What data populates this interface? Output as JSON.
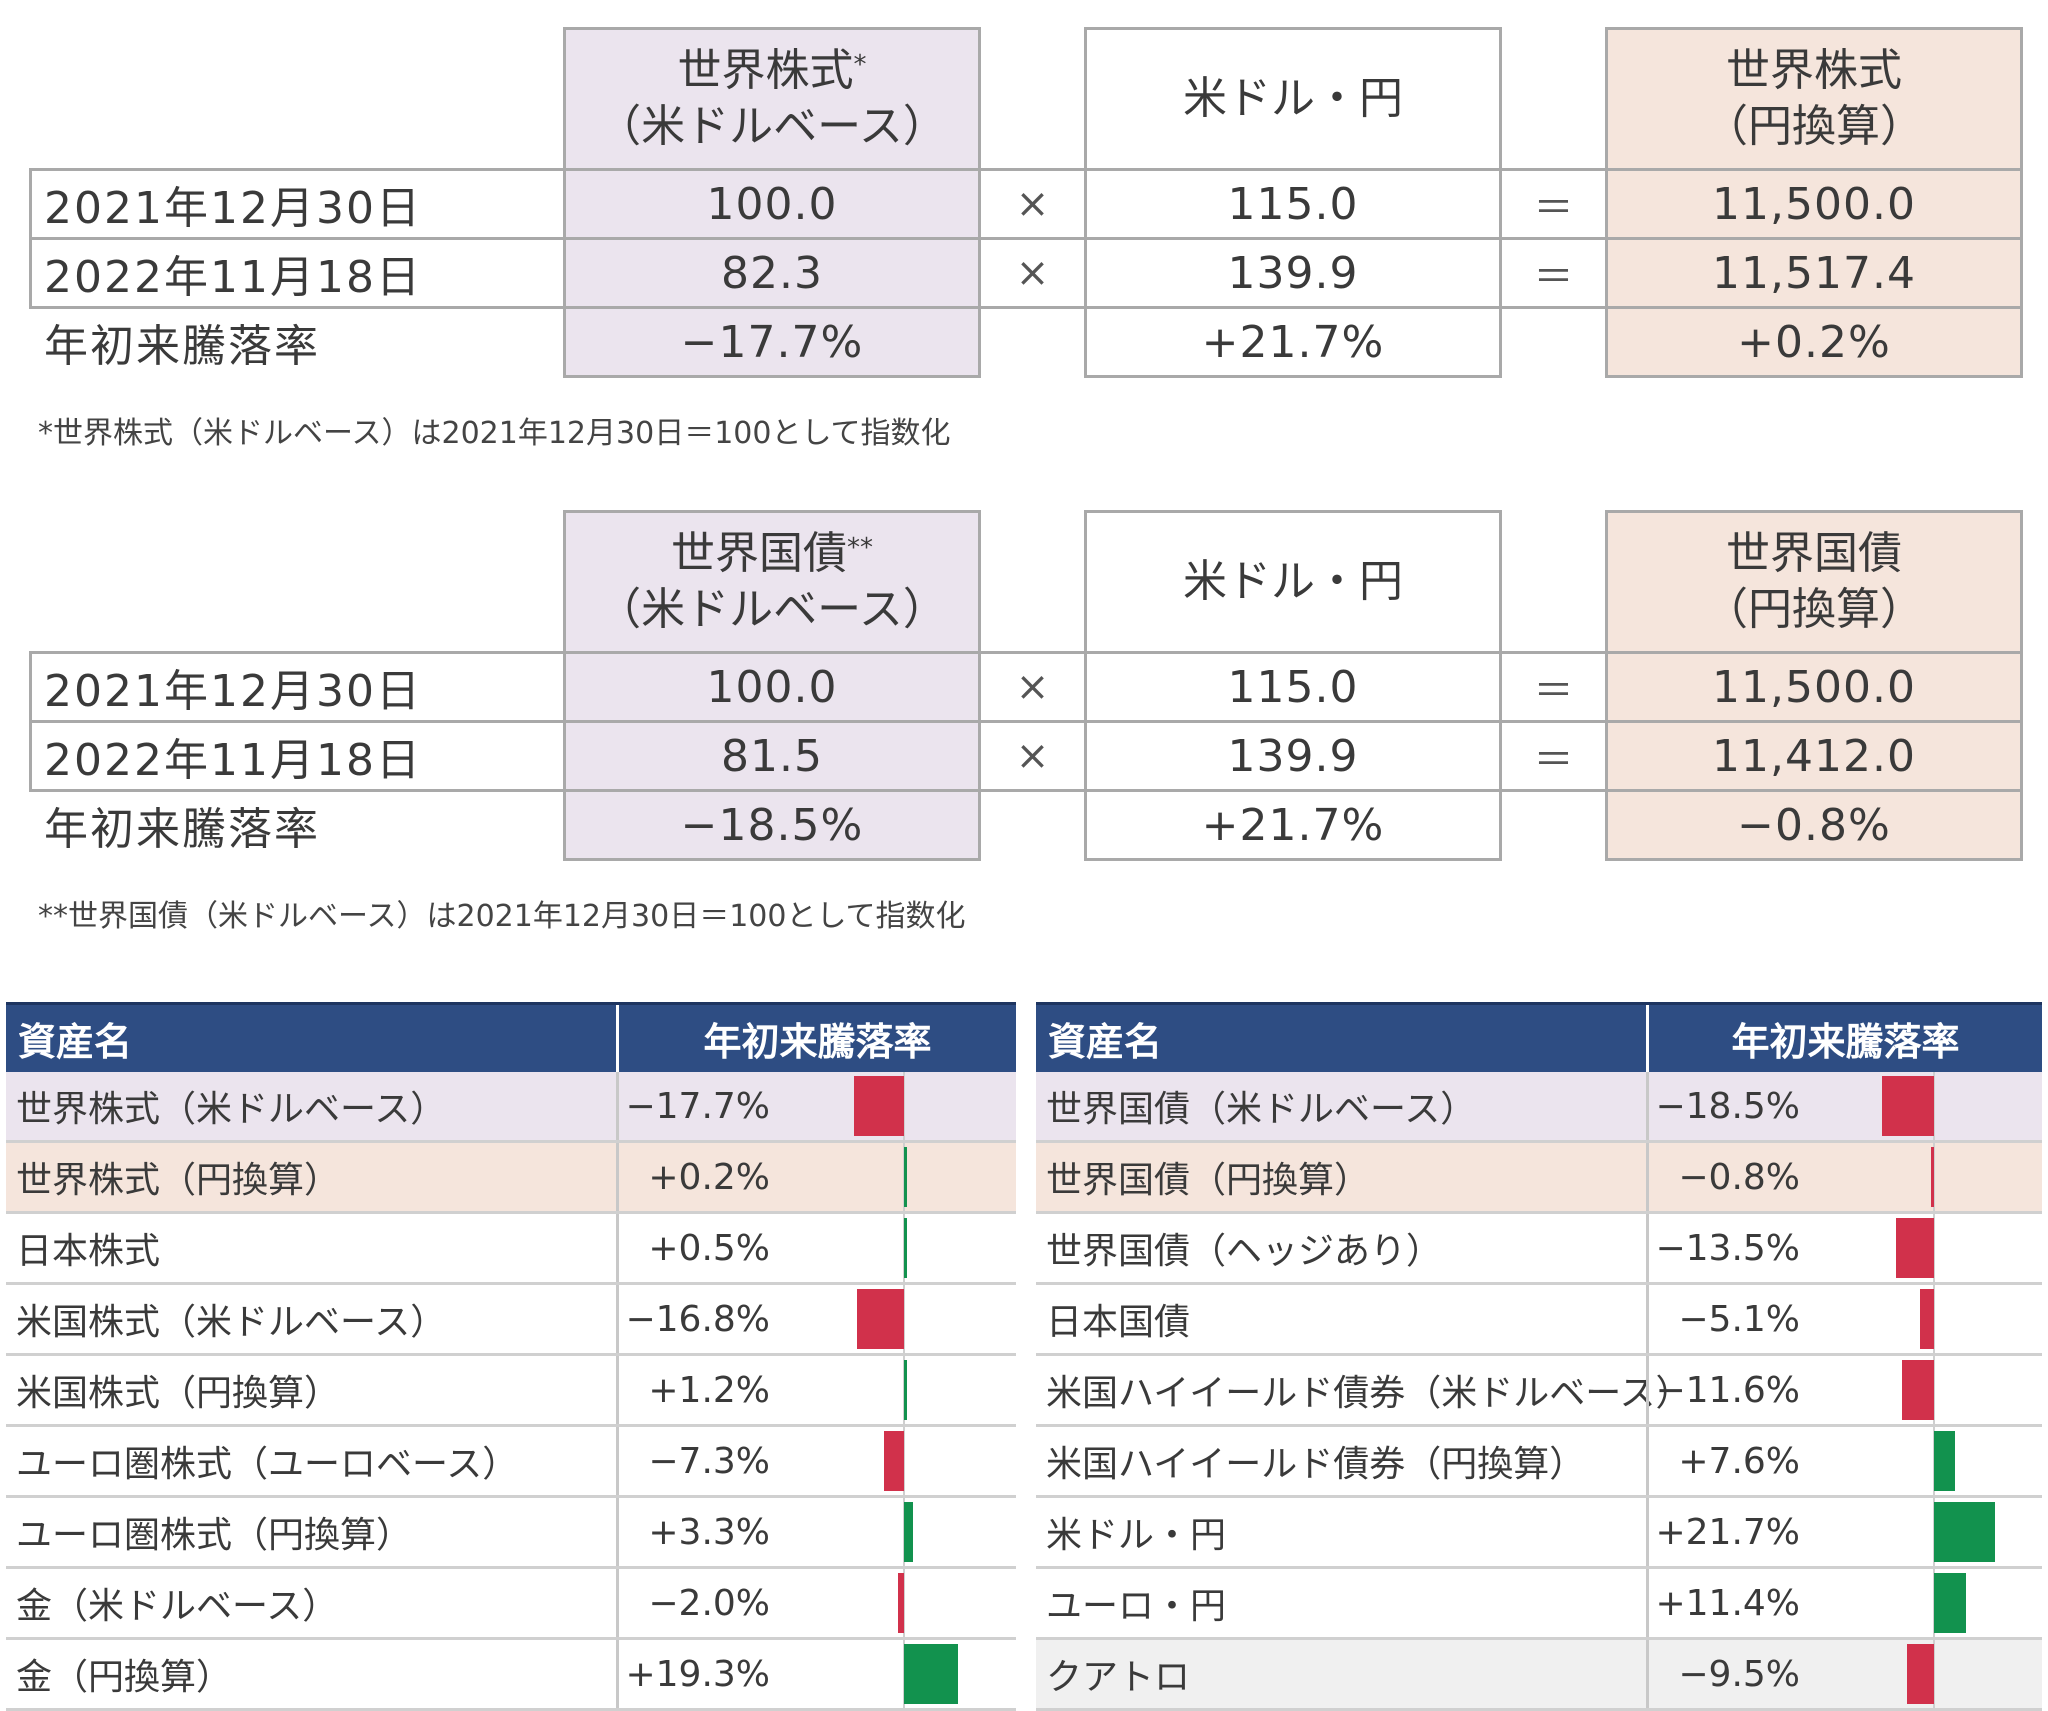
{
  "block1": {
    "col1_header": [
      "世界株式",
      "*",
      "（米ドルベース）"
    ],
    "col2_header": [
      "米ドル・円"
    ],
    "col3_header": [
      "世界株式",
      "（円換算）"
    ],
    "rows": [
      {
        "label": "2021年12月30日",
        "v1": "100.0",
        "op1": "×",
        "v2": "115.0",
        "op2": "＝",
        "v3": "11,500.0"
      },
      {
        "label": "2022年11月18日",
        "v1": "82.3",
        "op1": "×",
        "v2": "139.9",
        "op2": "＝",
        "v3": "11,517.4"
      },
      {
        "label": "年初来騰落率",
        "v1": "−17.7%",
        "op1": "",
        "v2": "+21.7%",
        "op2": "",
        "v3": "+0.2%"
      }
    ],
    "note": "*世界株式（米ドルベース）は2021年12月30日＝100として指数化"
  },
  "block2": {
    "col1_header": [
      "世界国債",
      "**",
      "（米ドルベース）"
    ],
    "col2_header": [
      "米ドル・円"
    ],
    "col3_header": [
      "世界国債",
      "（円換算）"
    ],
    "rows": [
      {
        "label": "2021年12月30日",
        "v1": "100.0",
        "op1": "×",
        "v2": "115.0",
        "op2": "＝",
        "v3": "11,500.0"
      },
      {
        "label": "2022年11月18日",
        "v1": "81.5",
        "op1": "×",
        "v2": "139.9",
        "op2": "＝",
        "v3": "11,412.0"
      },
      {
        "label": "年初来騰落率",
        "v1": "−18.5%",
        "op1": "",
        "v2": "+21.7%",
        "op2": "",
        "v3": "−0.8%"
      }
    ],
    "note": "**世界国債（米ドルベース）は2021年12月30日＝100として指数化"
  },
  "left_table": {
    "header_name": "資産名",
    "header_value": "年初来騰落率",
    "rows": [
      {
        "name": "世界株式（米ドルベース）",
        "value_text": "−17.7%",
        "value": -17.7,
        "bg": "#ebe4ee"
      },
      {
        "name": "世界株式（円換算）",
        "value_text": "+0.2%",
        "value": 0.2,
        "bg": "#f5e5dc"
      },
      {
        "name": "日本株式",
        "value_text": "+0.5%",
        "value": 0.5,
        "bg": "#ffffff"
      },
      {
        "name": "米国株式（米ドルベース）",
        "value_text": "−16.8%",
        "value": -16.8,
        "bg": "#ffffff"
      },
      {
        "name": "米国株式（円換算）",
        "value_text": "+1.2%",
        "value": 1.2,
        "bg": "#ffffff"
      },
      {
        "name": "ユーロ圏株式（ユーロベース）",
        "value_text": "−7.3%",
        "value": -7.3,
        "bg": "#ffffff"
      },
      {
        "name": "ユーロ圏株式（円換算）",
        "value_text": "+3.3%",
        "value": 3.3,
        "bg": "#ffffff"
      },
      {
        "name": "金（米ドルベース）",
        "value_text": "−2.0%",
        "value": -2.0,
        "bg": "#ffffff"
      },
      {
        "name": "金（円換算）",
        "value_text": "+19.3%",
        "value": 19.3,
        "bg": "#ffffff"
      }
    ]
  },
  "right_table": {
    "header_name": "資産名",
    "header_value": "年初来騰落率",
    "rows": [
      {
        "name": "世界国債（米ドルベース）",
        "value_text": "−18.5%",
        "value": -18.5,
        "bg": "#ebe4ee"
      },
      {
        "name": "世界国債（円換算）",
        "value_text": "−0.8%",
        "value": -0.8,
        "bg": "#f5e5dc"
      },
      {
        "name": "世界国債（ヘッジあり）",
        "value_text": "−13.5%",
        "value": -13.5,
        "bg": "#ffffff"
      },
      {
        "name": "日本国債",
        "value_text": "−5.1%",
        "value": -5.1,
        "bg": "#ffffff"
      },
      {
        "name": "米国ハイイールド債券（米ドルベース）",
        "value_text": "−11.6%",
        "value": -11.6,
        "bg": "#ffffff"
      },
      {
        "name": "米国ハイイールド債券（円換算）",
        "value_text": "+7.6%",
        "value": 7.6,
        "bg": "#ffffff"
      },
      {
        "name": "米ドル・円",
        "value_text": "+21.7%",
        "value": 21.7,
        "bg": "#ffffff"
      },
      {
        "name": "ユーロ・円",
        "value_text": "+11.4%",
        "value": 11.4,
        "bg": "#ffffff"
      },
      {
        "name": "クアトロ",
        "value_text": "−9.5%",
        "value": -9.5,
        "bg": "#f0f0f0"
      }
    ]
  },
  "colors": {
    "negative": "#d1314b",
    "positive": "#12924e",
    "header": "#2e4d83"
  }
}
